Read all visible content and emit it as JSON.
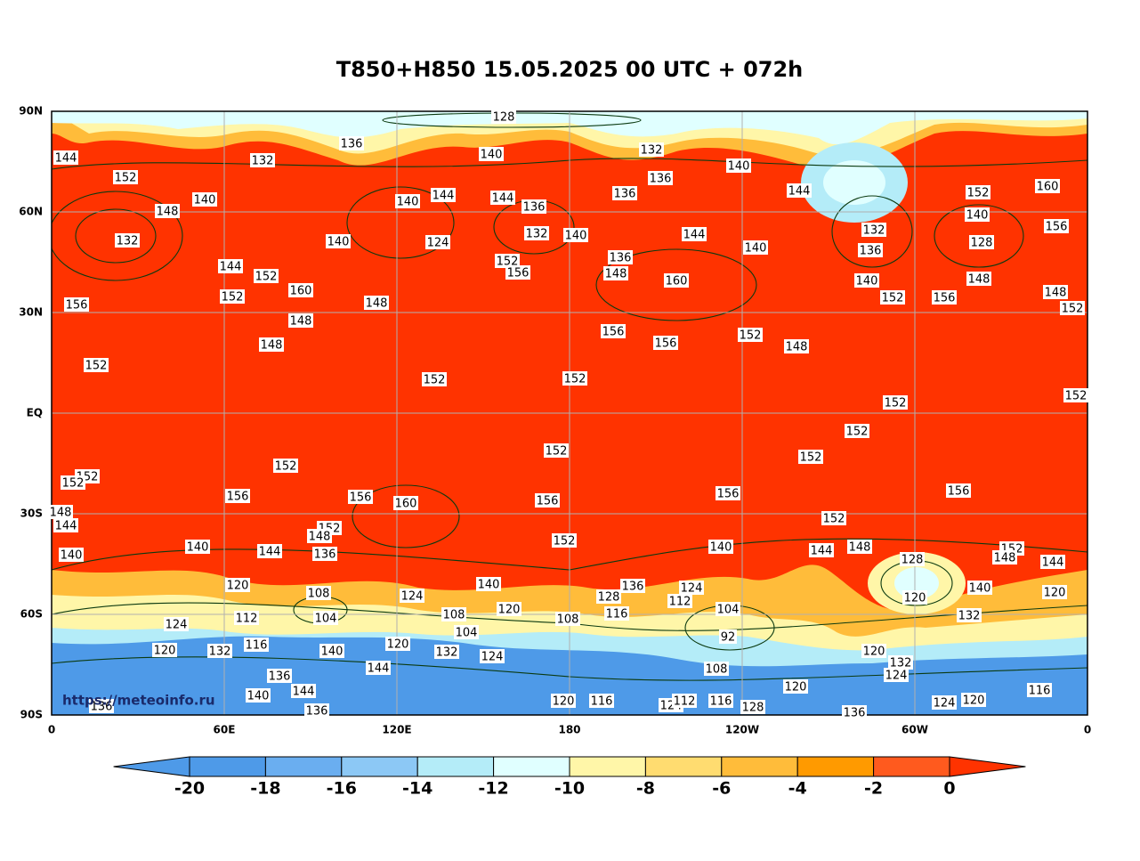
{
  "title": "T850+H850 15.05.2025 00 UTC + 072h",
  "watermark": "https://meteoinfo.ru",
  "lat_labels": [
    "90N",
    "60N",
    "30N",
    "EQ",
    "30S",
    "60S",
    "90S"
  ],
  "lon_labels": [
    "0",
    "60E",
    "120E",
    "180",
    "120W",
    "60W",
    "0"
  ],
  "colorbar": {
    "ticks": [
      -20,
      -18,
      -16,
      -14,
      -12,
      -10,
      -8,
      -6,
      -4,
      -2,
      0
    ],
    "colors": [
      "#4e9ae8",
      "#4e9ae8",
      "#6aaef0",
      "#8cc8f5",
      "#b4ecf8",
      "#e0ffff",
      "#fff6a8",
      "#ffdc70",
      "#ffbc3a",
      "#ff9a00",
      "#ff5a1e",
      "#ff3300"
    ]
  },
  "contour_labels": [
    "128",
    "136",
    "144",
    "132",
    "140",
    "132",
    "136",
    "140",
    "152",
    "140",
    "148",
    "140",
    "144",
    "144",
    "136",
    "136",
    "144",
    "152",
    "160",
    "132",
    "140",
    "124",
    "132",
    "140",
    "144",
    "140",
    "132",
    "140",
    "128",
    "156",
    "144",
    "152",
    "160",
    "152",
    "156",
    "136",
    "148",
    "160",
    "136",
    "140",
    "152",
    "156",
    "148",
    "148",
    "152",
    "156",
    "152",
    "148",
    "148",
    "148",
    "156",
    "156",
    "152",
    "148",
    "152",
    "152",
    "152",
    "152",
    "152",
    "152",
    "152",
    "152",
    "152",
    "152",
    "152",
    "156",
    "156",
    "160",
    "156",
    "156",
    "156",
    "148",
    "144",
    "152",
    "152",
    "148",
    "140",
    "144",
    "136",
    "140",
    "152",
    "140",
    "144",
    "148",
    "152",
    "128",
    "148",
    "144",
    "120",
    "108",
    "124",
    "140",
    "128",
    "136",
    "124",
    "112",
    "140",
    "120",
    "104",
    "112",
    "108",
    "120",
    "108",
    "116",
    "104",
    "120",
    "132",
    "124",
    "104",
    "92",
    "120",
    "132",
    "116",
    "140",
    "120",
    "132",
    "124",
    "120",
    "132",
    "124",
    "144",
    "136",
    "108",
    "120",
    "144",
    "140",
    "120",
    "116",
    "124",
    "112",
    "116",
    "128",
    "136",
    "124",
    "120",
    "116",
    "136",
    "136"
  ]
}
